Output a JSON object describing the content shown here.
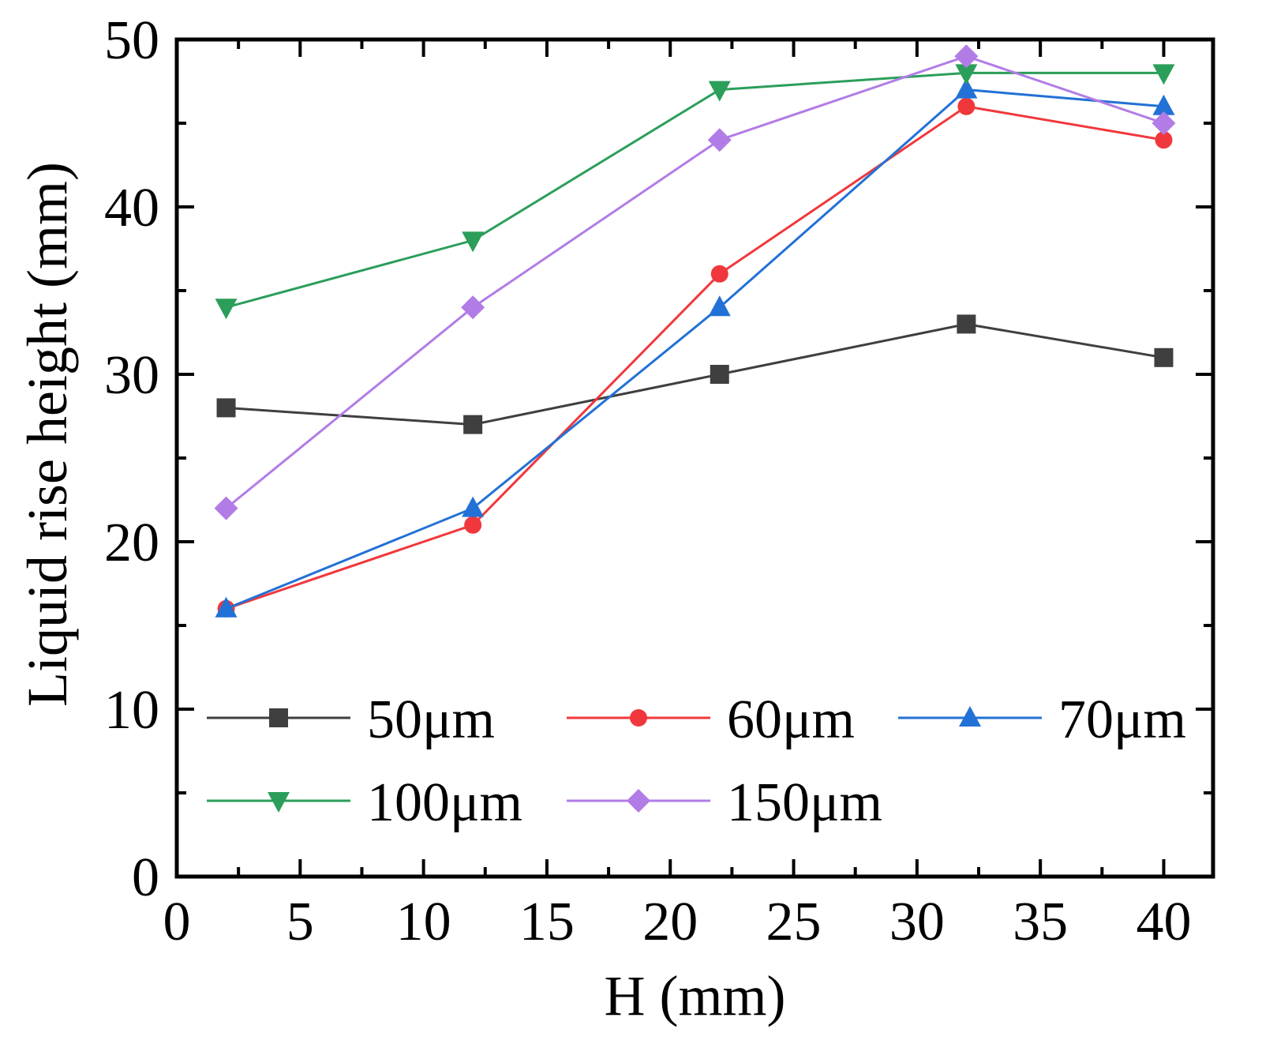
{
  "chart_data": {
    "type": "line",
    "xlabel": "H (mm)",
    "ylabel": "Liquid rise height (mm)",
    "xlim": [
      0,
      42
    ],
    "ylim": [
      0,
      50
    ],
    "x_major_ticks": [
      0,
      5,
      10,
      15,
      20,
      25,
      30,
      35,
      40
    ],
    "x_tick_labels": [
      "0",
      "5",
      "10",
      "15",
      "20",
      "25",
      "30",
      "35",
      "40"
    ],
    "y_major_ticks": [
      0,
      10,
      20,
      30,
      40,
      50
    ],
    "y_tick_labels": [
      "0",
      "10",
      "20",
      "30",
      "40",
      "50"
    ],
    "grid": false,
    "legend_position": "bottom, inside plot",
    "x": [
      2,
      12,
      22,
      32,
      40
    ],
    "series": [
      {
        "name": "50μm",
        "marker": "square",
        "color": "#3f3f3f",
        "values": [
          28,
          27,
          30,
          33,
          31
        ]
      },
      {
        "name": "60μm",
        "marker": "circle",
        "color": "#f0383c",
        "values": [
          16,
          21,
          36,
          46,
          44
        ]
      },
      {
        "name": "70μm",
        "marker": "triangle-up",
        "color": "#2271d6",
        "values": [
          16,
          22,
          34,
          47,
          46
        ]
      },
      {
        "name": "100μm",
        "marker": "triangle-down",
        "color": "#2b9e5a",
        "values": [
          34,
          38,
          47,
          48,
          48
        ]
      },
      {
        "name": "150μm",
        "marker": "diamond",
        "color": "#b27ce6",
        "values": [
          22,
          34,
          44,
          49,
          45
        ]
      }
    ]
  }
}
